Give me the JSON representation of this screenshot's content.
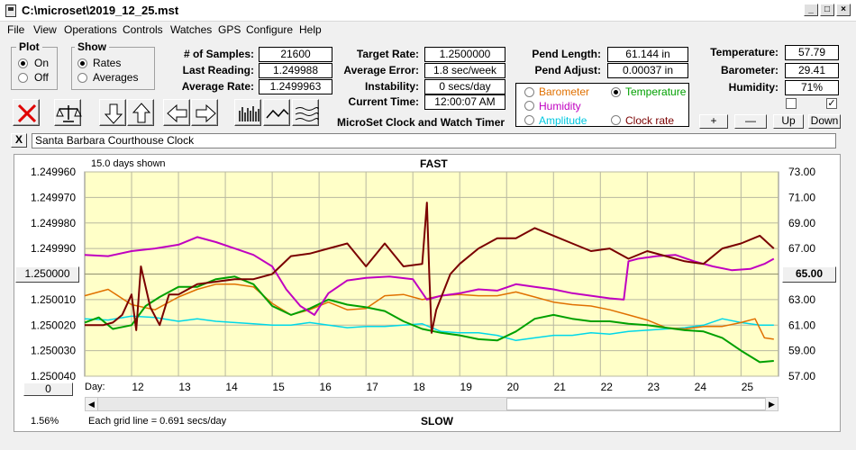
{
  "window": {
    "title": "C:\\microset\\2019_12_25.mst"
  },
  "menu": [
    "File",
    "View",
    "Operations",
    "Controls",
    "Watches",
    "GPS",
    "Configure",
    "Help"
  ],
  "plot_group": {
    "title": "Plot",
    "options": [
      "On",
      "Off"
    ],
    "selected": "On"
  },
  "show_group": {
    "title": "Show",
    "options": [
      "Rates",
      "Averages"
    ],
    "selected": "Rates"
  },
  "stats": [
    {
      "label": "# of Samples:",
      "value": "21600"
    },
    {
      "label": "Last Reading:",
      "value": "1.249988"
    },
    {
      "label": "Average Rate:",
      "value": "1.2499963"
    }
  ],
  "rates": [
    {
      "label": "Target Rate:",
      "value": "1.2500000"
    },
    {
      "label": "Average Error:",
      "value": "1.8 sec/week"
    },
    {
      "label": "Instability:",
      "value": "0 secs/day"
    },
    {
      "label": "Current Time:",
      "value": "12:00:07 AM"
    }
  ],
  "pendulum": [
    {
      "label": "Pend Length:",
      "value": "61.144 in"
    },
    {
      "label": "Pend Adjust:",
      "value": "0.00037 in"
    }
  ],
  "environment": [
    {
      "label": "Temperature:",
      "value": "57.79"
    },
    {
      "label": "Barometer:",
      "value": "29.41"
    },
    {
      "label": "Humidity:",
      "value": "71%"
    }
  ],
  "subtitle": "MicroSet Clock and Watch Timer",
  "sensor_options": [
    {
      "label": "Barometer",
      "color": "#e07000",
      "selected": false
    },
    {
      "label": "Temperature",
      "color": "#00a000",
      "selected": true
    },
    {
      "label": "Humidity",
      "color": "#c000c0",
      "selected": false
    },
    {
      "label": "Amplitude",
      "color": "#00c8e0",
      "selected": false
    },
    {
      "label": "Clock rate",
      "color": "#7a0000",
      "selected": false
    }
  ],
  "adjust_buttons": [
    "+",
    "—",
    "Up",
    "Down"
  ],
  "checks": [
    false,
    true
  ],
  "clock_name": "Santa Barbara Courthouse Clock",
  "close_label": "X",
  "chart_top": {
    "days_shown": "15.0 days shown",
    "fast": "FAST"
  },
  "chart_bottom": {
    "percent": "1.56%",
    "grid_note": "Each grid line = 0.691 secs/day",
    "slow": "SLOW",
    "day_label": "Day:",
    "left_btn": "0"
  },
  "center_left_btn": "1.250000",
  "center_right_btn": "65.00",
  "chart_data": {
    "type": "line",
    "x_label": "Day:",
    "x_ticks": [
      "12",
      "13",
      "14",
      "15",
      "16",
      "17",
      "18",
      "19",
      "20",
      "21",
      "22",
      "23",
      "24",
      "25"
    ],
    "xlim": [
      11.0,
      25.8
    ],
    "y_left_ticks": [
      "1.249960",
      "1.249970",
      "1.249980",
      "1.249990",
      "1.250000",
      "1.250010",
      "1.250020",
      "1.250030",
      "1.250040"
    ],
    "ylim_left": [
      1.25004,
      1.24996
    ],
    "y_right_ticks": [
      "73.00",
      "71.00",
      "69.00",
      "67.00",
      "65.00",
      "63.00",
      "61.00",
      "59.00",
      "57.00"
    ],
    "ylim_right": [
      57,
      73
    ],
    "grid": true,
    "series": [
      {
        "name": "Clock rate",
        "color": "#7a0000",
        "width": 2,
        "x": [
          11.0,
          11.4,
          11.6,
          11.8,
          12.0,
          12.1,
          12.2,
          12.4,
          12.6,
          12.8,
          13.0,
          13.4,
          13.8,
          14.2,
          14.6,
          15.0,
          15.4,
          15.8,
          16.2,
          16.6,
          17.0,
          17.4,
          17.8,
          18.2,
          18.3,
          18.35,
          18.4,
          18.5,
          18.8,
          19.0,
          19.4,
          19.8,
          20.2,
          20.6,
          21.0,
          21.4,
          21.8,
          22.2,
          22.6,
          23.0,
          23.4,
          23.8,
          24.2,
          24.6,
          25.0,
          25.4,
          25.7
        ],
        "y": [
          1.25002,
          1.25002,
          1.250019,
          1.250016,
          1.250008,
          1.250022,
          1.249997,
          1.250013,
          1.25002,
          1.250008,
          1.250008,
          1.250004,
          1.250003,
          1.250002,
          1.250002,
          1.25,
          1.249993,
          1.249992,
          1.24999,
          1.249988,
          1.249997,
          1.249988,
          1.249997,
          1.249996,
          1.249972,
          1.25,
          1.250023,
          1.250014,
          1.25,
          1.249996,
          1.24999,
          1.249986,
          1.249986,
          1.249982,
          1.249985,
          1.249988,
          1.249991,
          1.24999,
          1.249994,
          1.249991,
          1.249993,
          1.249995,
          1.249996,
          1.24999,
          1.249988,
          1.249985,
          1.24999
        ]
      },
      {
        "name": "Humidity",
        "color": "#c000c0",
        "width": 2,
        "x": [
          11.0,
          11.5,
          12.0,
          12.5,
          13.0,
          13.4,
          13.8,
          14.2,
          14.6,
          15.0,
          15.3,
          15.6,
          15.9,
          16.2,
          16.6,
          17.0,
          17.5,
          18.0,
          18.3,
          18.6,
          19.0,
          19.4,
          19.8,
          20.2,
          20.6,
          21.0,
          21.4,
          21.8,
          22.2,
          22.5,
          22.6,
          22.8,
          23.2,
          23.6,
          24.0,
          24.4,
          24.8,
          25.2,
          25.5,
          25.7
        ],
        "y": [
          66.5,
          66.4,
          66.8,
          67.0,
          67.3,
          67.9,
          67.5,
          67.0,
          66.5,
          65.6,
          63.8,
          62.5,
          61.8,
          63.5,
          64.5,
          64.7,
          64.8,
          64.6,
          63.0,
          63.3,
          63.5,
          63.8,
          63.7,
          64.2,
          64.0,
          63.8,
          63.5,
          63.3,
          63.1,
          63.0,
          66.0,
          66.2,
          66.4,
          66.5,
          66.0,
          65.6,
          65.3,
          65.4,
          65.8,
          66.2
        ]
      },
      {
        "name": "Temperature",
        "color": "#00a000",
        "width": 2,
        "x": [
          11.0,
          11.3,
          11.6,
          12.0,
          12.3,
          12.6,
          13.0,
          13.4,
          13.8,
          14.2,
          14.6,
          15.0,
          15.4,
          15.8,
          16.2,
          16.6,
          17.0,
          17.4,
          17.8,
          18.2,
          18.6,
          19.0,
          19.4,
          19.8,
          20.2,
          20.6,
          21.0,
          21.4,
          21.8,
          22.2,
          22.6,
          23.0,
          23.4,
          23.8,
          24.2,
          24.6,
          25.0,
          25.4,
          25.7
        ],
        "y": [
          61.2,
          61.6,
          60.7,
          61.0,
          62.5,
          63.2,
          64.0,
          64.0,
          64.6,
          64.8,
          64.2,
          62.5,
          61.8,
          62.3,
          63.0,
          62.6,
          62.4,
          62.1,
          61.3,
          60.7,
          60.4,
          60.2,
          59.9,
          59.8,
          60.5,
          61.5,
          61.8,
          61.5,
          61.3,
          61.3,
          61.1,
          61.0,
          60.8,
          60.6,
          60.5,
          60.0,
          59.0,
          58.1,
          58.2
        ]
      },
      {
        "name": "Barometer",
        "color": "#e07000",
        "width": 1.5,
        "x": [
          11.0,
          11.5,
          12.0,
          12.5,
          13.0,
          13.4,
          13.8,
          14.2,
          14.6,
          15.0,
          15.4,
          15.8,
          16.2,
          16.6,
          17.0,
          17.4,
          17.8,
          18.2,
          18.6,
          19.0,
          19.4,
          19.8,
          20.2,
          20.6,
          21.0,
          21.4,
          21.8,
          22.2,
          22.6,
          23.0,
          23.4,
          23.8,
          24.2,
          24.6,
          25.0,
          25.3,
          25.5,
          25.7
        ],
        "y": [
          63.3,
          63.8,
          62.6,
          62.2,
          63.2,
          63.8,
          64.2,
          64.2,
          64.0,
          62.7,
          61.8,
          62.2,
          62.8,
          62.2,
          62.3,
          63.3,
          63.4,
          63.0,
          63.3,
          63.4,
          63.3,
          63.3,
          63.6,
          63.2,
          62.8,
          62.6,
          62.5,
          62.2,
          61.8,
          61.4,
          60.8,
          60.7,
          60.9,
          60.9,
          61.2,
          61.5,
          60.0,
          59.9
        ]
      },
      {
        "name": "Amplitude",
        "color": "#00d8e8",
        "width": 1.5,
        "x": [
          11.0,
          11.5,
          12.0,
          12.5,
          13.0,
          13.4,
          13.8,
          14.2,
          14.6,
          15.0,
          15.4,
          15.8,
          16.2,
          16.6,
          17.0,
          17.4,
          17.8,
          18.2,
          18.6,
          19.0,
          19.4,
          19.8,
          20.2,
          20.6,
          21.0,
          21.4,
          21.8,
          22.2,
          22.6,
          23.0,
          23.4,
          23.8,
          24.2,
          24.6,
          25.0,
          25.4,
          25.7
        ],
        "y": [
          61.5,
          61.4,
          61.7,
          61.6,
          61.3,
          61.5,
          61.3,
          61.2,
          61.1,
          61.0,
          61.0,
          61.2,
          61.0,
          60.8,
          60.9,
          60.9,
          61.0,
          61.1,
          60.5,
          60.4,
          60.4,
          60.2,
          59.8,
          60.0,
          60.2,
          60.2,
          60.4,
          60.3,
          60.5,
          60.6,
          60.7,
          60.8,
          61.0,
          61.5,
          61.2,
          61.0,
          61.0
        ]
      }
    ]
  }
}
